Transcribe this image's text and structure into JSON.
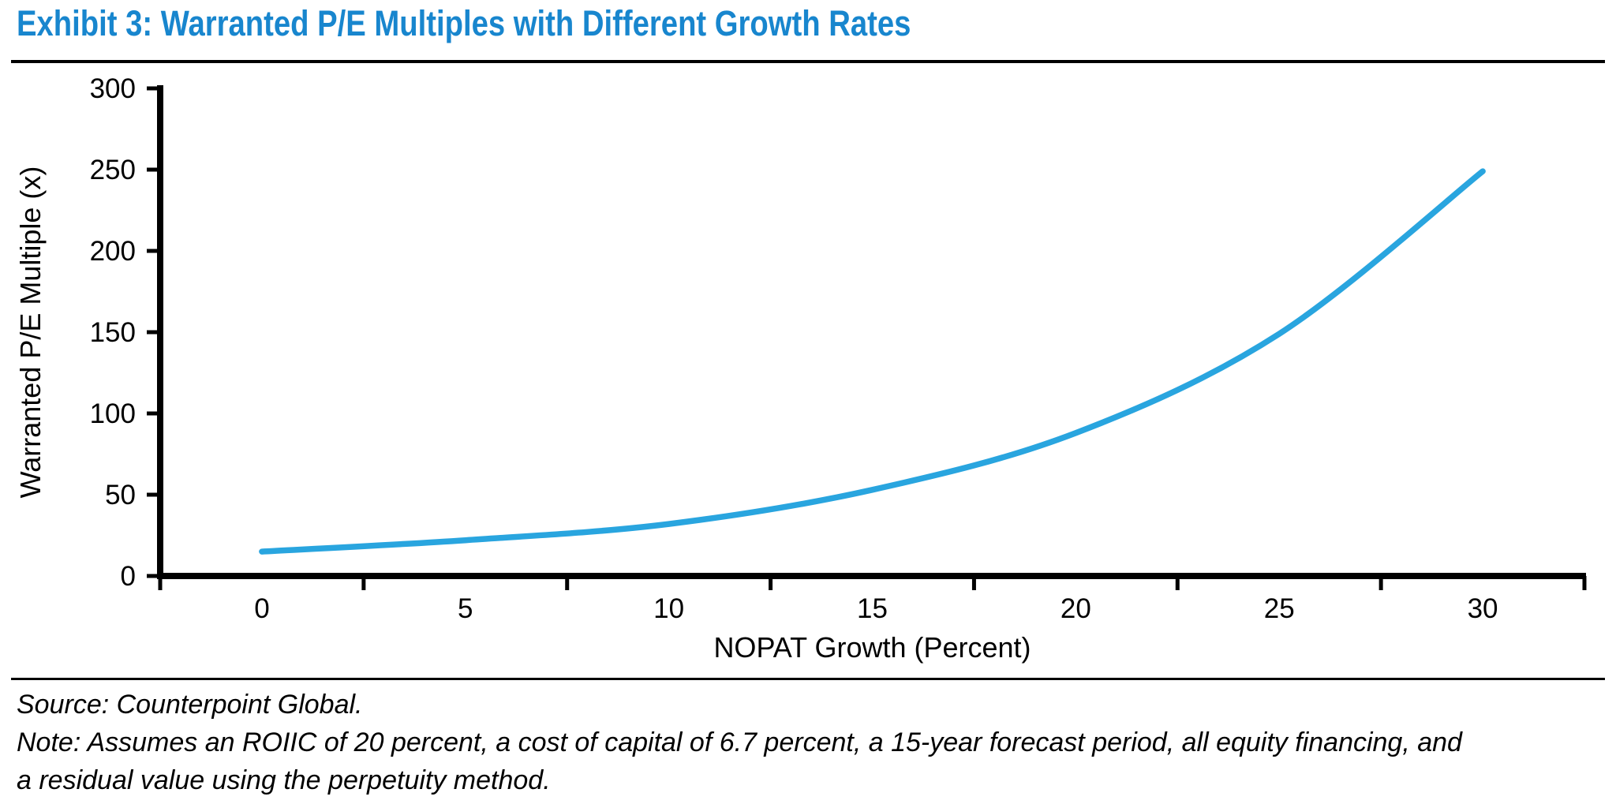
{
  "header": {
    "title": "Exhibit 3: Warranted P/E Multiples with Different Growth Rates"
  },
  "footer": {
    "source": "Source: Counterpoint Global.",
    "note_lines": [
      "Note: Assumes an ROIIC of 20 percent, a cost of capital of 6.7 percent, a 15-year forecast period, all equity financing, and",
      "a residual value using the perpetuity method."
    ]
  },
  "colors": {
    "title_blue": "#1886CE",
    "curve_blue": "#29A5DF",
    "axis_black": "#000000"
  },
  "chart_data": {
    "type": "line",
    "title": "",
    "xlabel": "NOPAT Growth (Percent)",
    "ylabel": "Warranted P/E Multiple (x)",
    "categories": [
      0,
      5,
      10,
      15,
      20,
      25,
      30
    ],
    "x_tick_labels": [
      "0",
      "5",
      "10",
      "15",
      "20",
      "25",
      "30"
    ],
    "series": [
      {
        "name": "Warranted P/E Multiple",
        "values": [
          15,
          22,
          32,
          53,
          88,
          149,
          249
        ]
      }
    ],
    "ylim": [
      0,
      300
    ],
    "y_ticks": [
      0,
      50,
      100,
      150,
      200,
      250,
      300
    ],
    "grid": false,
    "legend_position": "none",
    "axis_note": "category axis: tick marks at category boundaries, labels centered between ticks"
  }
}
